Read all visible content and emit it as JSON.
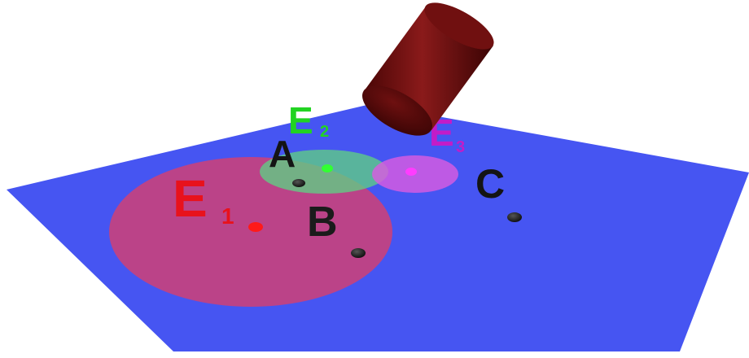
{
  "colors": {
    "background": "#ffffff",
    "plane": "#4655f2",
    "cylinder": "#7c1414",
    "point": "#141414",
    "e1": "#e8121c",
    "e2": "#22d322",
    "e3": "#c21cc8",
    "e1_area": "#d64070",
    "e2_area": "#5fcf84",
    "e3_area": "#d95ce0"
  },
  "labels": {
    "a": "A",
    "b": "B",
    "c": "C",
    "e1_letter": "E",
    "e1_index": "1",
    "e2_letter": "E",
    "e2_index": "2",
    "e3_letter": "E",
    "e3_index": "3"
  }
}
